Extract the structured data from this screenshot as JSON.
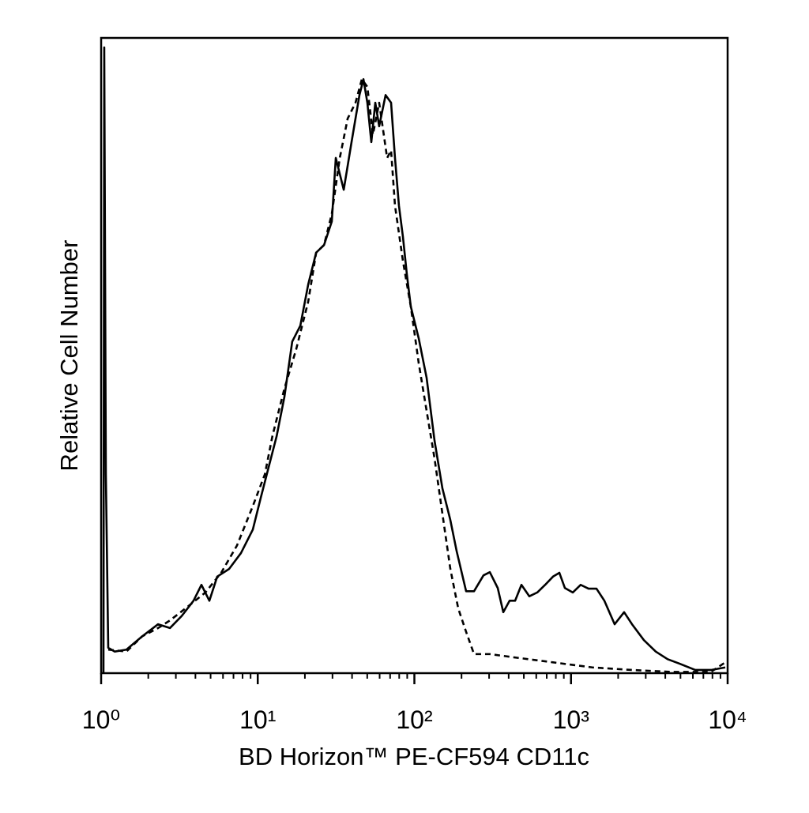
{
  "chart_data": {
    "type": "line",
    "x_label": "BD Horizon™ PE-CF594 CD11c",
    "y_label": "Relative Cell Number",
    "xscale": "log",
    "xlim": [
      1,
      10000
    ],
    "ylim": [
      0,
      100
    ],
    "xticks": [
      {
        "value": 1,
        "label": "10⁰"
      },
      {
        "value": 10,
        "label": "10¹"
      },
      {
        "value": 100,
        "label": "10²"
      },
      {
        "value": 1000,
        "label": "10³"
      },
      {
        "value": 10000,
        "label": "10⁴"
      }
    ],
    "minor_xticks": [
      2,
      3,
      4,
      5,
      6,
      7,
      8,
      9,
      20,
      30,
      40,
      50,
      60,
      70,
      80,
      90,
      200,
      300,
      400,
      500,
      600,
      700,
      800,
      900,
      2000,
      3000,
      4000,
      5000,
      6000,
      7000,
      8000,
      9000
    ],
    "series": [
      {
        "color": "#000000",
        "dash": false,
        "x": [
          1.035,
          1.047,
          1.072,
          1.11,
          1.22,
          1.45,
          1.83,
          2.31,
          2.75,
          3.27,
          3.89,
          4.37,
          4.91,
          5.51,
          6.56,
          7.81,
          9.3,
          10.4,
          11.7,
          13.2,
          14.8,
          16.6,
          18.7,
          21.0,
          23.6,
          26.5,
          29.7,
          31.5,
          35.4,
          39.7,
          44.6,
          47.3,
          50.1,
          53.1,
          56.3,
          59.6,
          65.5,
          71.0,
          75.2,
          79.7,
          84.5,
          89.6,
          94.9,
          106.6,
          119.7,
          134.5,
          151.0,
          169.7,
          186.2,
          214.0,
          240.4,
          276.3,
          303.2,
          340.6,
          369.5,
          405.4,
          439.7,
          482.6,
          542.0,
          608.7,
          683.7,
          767.7,
          842.7,
          914.2,
          1026.4,
          1153.0,
          1294.6,
          1454.6,
          1633.4,
          1899.7,
          2183.4,
          2452.7,
          2919.5,
          3475.6,
          4137.3,
          4925.2,
          6211,
          7834,
          9658
        ],
        "values": [
          0,
          98.5,
          31.3,
          4.0,
          3.4,
          3.7,
          5.8,
          7.7,
          7.1,
          9.0,
          11.4,
          13.9,
          11.4,
          15.2,
          16.4,
          18.9,
          22.6,
          27.4,
          32.3,
          37.3,
          43.5,
          52.2,
          54.7,
          61.2,
          66.2,
          67.4,
          71.1,
          81.1,
          76.1,
          83.6,
          91.0,
          93.5,
          89.8,
          83.6,
          89.8,
          86.1,
          91.0,
          89.8,
          81.1,
          73.6,
          68.7,
          62.7,
          57.7,
          52.7,
          46.5,
          36.6,
          29.1,
          24.1,
          19.2,
          12.9,
          12.9,
          15.4,
          15.9,
          13.4,
          9.6,
          11.4,
          11.4,
          13.9,
          12.1,
          12.7,
          13.9,
          15.2,
          15.8,
          13.4,
          12.7,
          13.9,
          13.3,
          13.3,
          11.4,
          7.7,
          9.6,
          7.7,
          5.2,
          3.4,
          2.2,
          1.5,
          0.5,
          0.5,
          0.9
        ]
      },
      {
        "color": "#000000",
        "dash": true,
        "x": [
          1.11,
          1.45,
          1.83,
          2.31,
          2.75,
          3.46,
          4.63,
          5.84,
          7.37,
          9.3,
          11.1,
          12.4,
          14.8,
          17.6,
          21.0,
          23.6,
          26.5,
          29.7,
          33.4,
          37.5,
          42.1,
          46.2,
          50.1,
          54.4,
          59.6,
          67.0,
          71.0,
          75.2,
          84.5,
          94.9,
          106.6,
          119.7,
          134.5,
          151.0,
          169.7,
          190.5,
          214.0,
          240.4,
          303.2,
          429.6,
          767.7,
          1372,
          2452.7,
          4385,
          7834,
          9658
        ],
        "values": [
          3.7,
          3.4,
          5.8,
          7.1,
          8.3,
          10.2,
          12.7,
          15.8,
          20.1,
          26.3,
          31.3,
          37.3,
          44.8,
          51.0,
          58.5,
          66.2,
          67.4,
          72.3,
          81.1,
          87.3,
          89.8,
          93.5,
          92.3,
          84.8,
          89.8,
          81.1,
          82.3,
          73.6,
          64.9,
          57.7,
          48.8,
          41.3,
          33.8,
          25.1,
          16.4,
          10.2,
          6.5,
          3.0,
          3.0,
          2.5,
          1.7,
          0.9,
          0.5,
          0.2,
          0.2,
          1.7
        ]
      }
    ]
  }
}
